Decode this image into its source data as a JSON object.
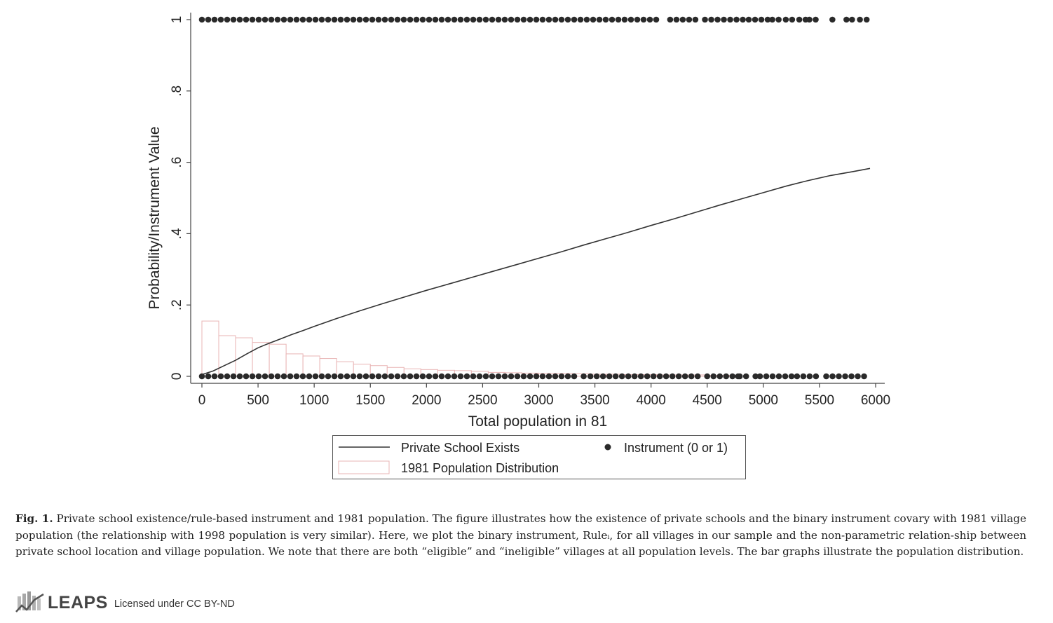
{
  "chart_data": {
    "type": "line",
    "xlabel": "Total population in 81",
    "ylabel": "Probability/Instrument Value",
    "xlim": [
      0,
      6000
    ],
    "ylim": [
      0,
      1
    ],
    "x_ticks": [
      "0",
      "500",
      "1000",
      "1500",
      "2000",
      "2500",
      "3000",
      "3500",
      "4000",
      "4500",
      "5000",
      "5500",
      "6000"
    ],
    "y_ticks": [
      {
        "value": 0,
        "label": "0"
      },
      {
        "value": 0.2,
        "label": ".2"
      },
      {
        "value": 0.4,
        "label": ".4"
      },
      {
        "value": 0.6,
        "label": ".6"
      },
      {
        "value": 0.8,
        "label": ".8"
      },
      {
        "value": 1,
        "label": "1"
      }
    ],
    "grid": false,
    "legend": [
      "Private School Exists",
      "Instrument (0 or 1)",
      "1981 Population Distribution"
    ],
    "series": [
      {
        "name": "Private School Exists",
        "type": "line",
        "x": [
          0,
          100,
          200,
          300,
          400,
          500,
          600,
          700,
          800,
          900,
          1000,
          1200,
          1400,
          1600,
          1800,
          2000,
          2200,
          2400,
          2600,
          2800,
          3000,
          3200,
          3400,
          3600,
          3800,
          4000,
          4200,
          4400,
          4600,
          4800,
          5000,
          5200,
          5400,
          5600,
          5800,
          5950
        ],
        "y": [
          0.005,
          0.015,
          0.03,
          0.045,
          0.063,
          0.08,
          0.093,
          0.105,
          0.117,
          0.128,
          0.14,
          0.162,
          0.183,
          0.203,
          0.222,
          0.241,
          0.259,
          0.277,
          0.295,
          0.313,
          0.331,
          0.349,
          0.368,
          0.386,
          0.404,
          0.423,
          0.441,
          0.46,
          0.479,
          0.497,
          0.515,
          0.533,
          0.549,
          0.563,
          0.574,
          0.583
        ]
      },
      {
        "name": "Instrument (0 or 1)",
        "type": "scatter",
        "value_1_ranges": [
          [
            0,
            4100
          ],
          [
            4170,
            4450
          ],
          [
            4480,
            4840
          ],
          [
            4870,
            5050
          ],
          [
            5080,
            5180
          ],
          [
            5200,
            5300
          ],
          [
            5320,
            5390
          ],
          [
            5410,
            5500
          ]
        ],
        "value_1_points": [
          5615,
          5740,
          5790,
          5860,
          5920
        ],
        "value_0_ranges": [
          [
            0,
            3330
          ],
          [
            3460,
            4460
          ],
          [
            4500,
            4740
          ],
          [
            4790,
            4890
          ],
          [
            4970,
            5260
          ],
          [
            5300,
            5500
          ],
          [
            5560,
            5940
          ]
        ],
        "value_0_points": [
          3400,
          4775,
          4930
        ]
      },
      {
        "name": "1981 Population Distribution",
        "type": "bar",
        "bin_width": 150,
        "x_start": 0,
        "values": [
          0.155,
          0.114,
          0.108,
          0.095,
          0.09,
          0.063,
          0.057,
          0.05,
          0.041,
          0.034,
          0.03,
          0.025,
          0.021,
          0.019,
          0.017,
          0.016,
          0.014,
          0.011,
          0.01,
          0.009,
          0.008,
          0.008,
          0.007,
          0.006,
          0.006,
          0.005,
          0.005,
          0.004,
          0.004,
          0.004,
          0.003,
          0.003
        ]
      }
    ],
    "colors": {
      "line": "#333333",
      "dots": "#2a2a2a",
      "bars": "#e9b5b5",
      "axes": "#333333"
    }
  },
  "caption": {
    "lead": "Fig. 1.",
    "text": "Private school existence/rule-based instrument and 1981 population. The figure illustrates how the existence of private schools and the binary instrument covary with 1981 village population (the relationship with 1998 population is very similar). Here, we plot the binary instrument, Ruleᵢ, for all villages in our sample and the non-parametric relation-ship between private school location and village population. We note that there are both “eligible” and “ineligible” villages at all population levels. The bar graphs illustrate the population distribution."
  },
  "footer": {
    "brand": "LEAPS",
    "license": "Licensed under CC BY-ND",
    "logo_icon": "bar-chart-trend-icon"
  }
}
